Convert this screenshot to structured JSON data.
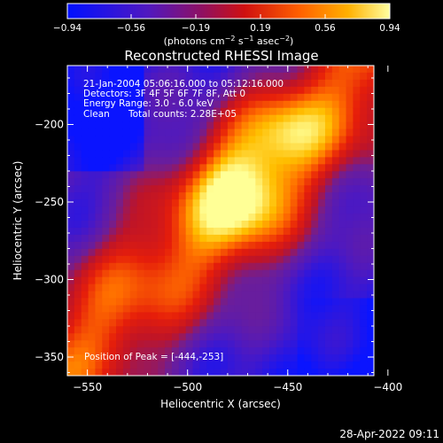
{
  "chart_data": {
    "type": "heatmap",
    "title": "Reconstructed RHESSI Image",
    "xlabel": "Heliocentric X (arcsec)",
    "ylabel": "Heliocentric Y (arcsec)",
    "xlim": [
      -560,
      -407
    ],
    "ylim": [
      -362,
      -162
    ],
    "xticks": [
      "-550",
      "-500",
      "-450",
      "-400"
    ],
    "yticks": [
      "-200",
      "-250",
      "-300",
      "-350"
    ],
    "colorbar": {
      "label_html": "(photons cm⁻² s⁻¹ asec⁻²)",
      "label_parts": {
        "pre": "(photons cm",
        "e1": "−2",
        "mid1": " s",
        "e2": "−1",
        "mid2": " asec",
        "e3": "−2",
        "post": ")"
      },
      "range": [
        -0.94,
        0.94
      ],
      "ticks": [
        "−0.94",
        "−0.56",
        "−0.19",
        "0.19",
        "0.56",
        "0.94"
      ]
    },
    "peak": {
      "x": -444,
      "y": -253
    },
    "annotations": {
      "time": "21-Jan-2004 05:06:16.000 to 05:12:16.000",
      "detectors": "Detectors: 3F 4F 5F 6F 7F 8F, Att 0",
      "energy": "Energy Range: 3.0 - 6.0 keV",
      "clean": "Clean",
      "counts": "Total counts: 2.28E+05",
      "peak_label": "Position of Peak = [-444,-253]"
    },
    "colors": {
      "low": "#0010ff",
      "mid_low": "#6a1fa8",
      "mid": "#d01010",
      "mid_high": "#ff8c00",
      "high": "#ffff88"
    }
  },
  "footer": {
    "date": "28-Apr-2022 09:11"
  }
}
